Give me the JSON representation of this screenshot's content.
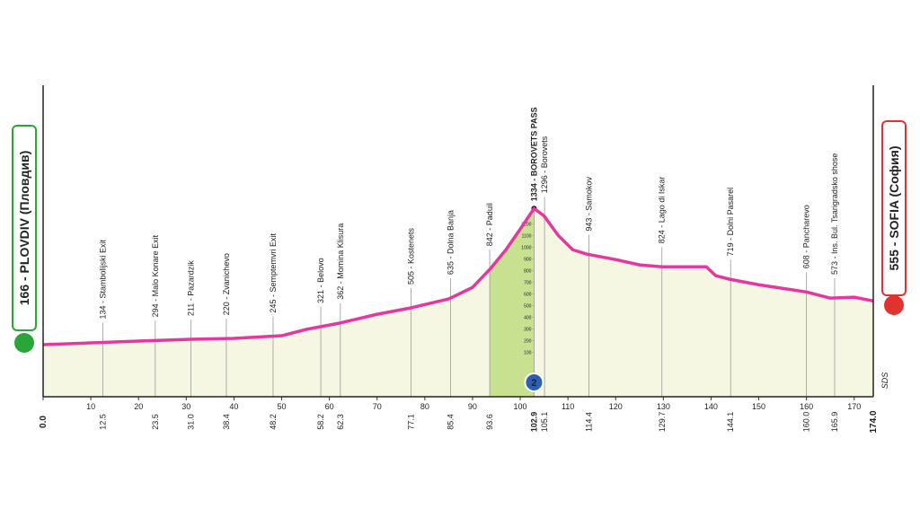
{
  "chart_data": {
    "type": "elevation-profile",
    "start": "166 - PLOVDIV (Пловдив)",
    "finish": "555 - SOFIA (София)",
    "start_km": {
      "value": 0,
      "label": "0.0"
    },
    "finish_km": {
      "value": 174,
      "label": "174.0"
    },
    "x": [
      0,
      20,
      31,
      40,
      50,
      55,
      62,
      70,
      77,
      85,
      90,
      93.6,
      97,
      100,
      102.9,
      105,
      108,
      111,
      114,
      120,
      125,
      129.7,
      135,
      139,
      141,
      144,
      150,
      160,
      165,
      170,
      174
    ],
    "elevation": [
      166,
      197,
      212,
      220,
      243,
      296,
      350,
      427,
      481,
      558,
      657,
      811,
      980,
      1157,
      1334,
      1270,
      1101,
      980,
      942,
      896,
      850,
      834,
      834,
      834,
      757,
      726,
      680,
      618,
      565,
      573,
      541
    ],
    "xlim": [
      0,
      174
    ],
    "ylim": [
      -280,
      2390
    ],
    "xticks": [
      0,
      10,
      20,
      30,
      40,
      50,
      60,
      70,
      80,
      90,
      100,
      110,
      120,
      130,
      140,
      150,
      160,
      170
    ],
    "yticks": [
      100,
      200,
      300,
      400,
      500,
      600,
      700,
      800,
      900,
      1000,
      1100,
      1200,
      1300,
      1400
    ],
    "line_color": "#e6379f",
    "fill_color": "#f6f7e3",
    "climb": {
      "from": 93.6,
      "to": 102.9,
      "category": "2",
      "color": "#c8e190"
    },
    "waypoints": [
      {
        "km": 12.5,
        "label": "134 - Stambolijski Exit"
      },
      {
        "km": 23.5,
        "label": "294 - Malo Konare Exit"
      },
      {
        "km": {
          "value": 31,
          "label": "31.0"
        },
        "label": "211 - Pazardzik"
      },
      {
        "km": 38.4,
        "label": "220 - Zvanichevo"
      },
      {
        "km": 48.2,
        "label": "245 - Semptemvri Exit"
      },
      {
        "km": 58.2,
        "label": "321 - Belovo"
      },
      {
        "km": 62.3,
        "label": "362 - Momina Klisura"
      },
      {
        "km": 77.1,
        "label": "505 - Kostenets"
      },
      {
        "km": 85.4,
        "label": "635 - Dolna Banja"
      },
      {
        "km": 93.6,
        "label": "842 - Paduil"
      },
      {
        "km": 102.9,
        "label": "1334 - BOROVETS PASS",
        "summit": true
      },
      {
        "km": 105.1,
        "label": "1296 - Borovets"
      },
      {
        "km": 114.4,
        "label": "943 - Samokov"
      },
      {
        "km": 129.7,
        "label": "824 - Lago di Iskar"
      },
      {
        "km": 144.1,
        "label": "719 - Dolni Pasarel"
      },
      {
        "km": {
          "value": 160,
          "label": "160.0"
        },
        "label": "608 - Pancharevo"
      },
      {
        "km": 165.9,
        "label": "573 - Ins. Bul. Tsarigradsko shose"
      }
    ],
    "logo": "SDS"
  }
}
